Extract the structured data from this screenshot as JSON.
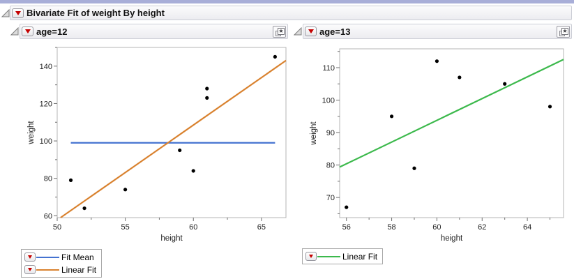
{
  "window": {
    "top_strip_color": "#a8aed8"
  },
  "icons": {
    "star": "★",
    "red_triangle": "red-triangle-menu",
    "disclosure": "open-disclosure-triangle",
    "bookmark": "layered-star-bookmark"
  },
  "outline": {
    "title": "Bivariate Fit of weight By height"
  },
  "panels": [
    {
      "title": "age=12",
      "legend": [
        {
          "label": "Fit Mean",
          "color": "#4472d0"
        },
        {
          "label": "Linear Fit",
          "color": "#d9822f"
        }
      ]
    },
    {
      "title": "age=13",
      "legend": [
        {
          "label": "Linear Fit",
          "color": "#3cb94c"
        }
      ]
    }
  ],
  "chart_data": [
    {
      "type": "scatter",
      "title": "age=12",
      "xlabel": "height",
      "ylabel": "weight",
      "xlim": [
        50,
        66.8
      ],
      "ylim": [
        59,
        150
      ],
      "x_ticks": [
        50,
        55,
        60,
        65
      ],
      "x_minor_ticks": [
        52.5,
        57.5,
        62.5
      ],
      "y_ticks": [
        60,
        80,
        100,
        120,
        140
      ],
      "y_minor_ticks": [
        70,
        90,
        110,
        130,
        150
      ],
      "grid": false,
      "point_color": "#000000",
      "points": [
        [
          51,
          79
        ],
        [
          52,
          64
        ],
        [
          55,
          74
        ],
        [
          59,
          95
        ],
        [
          60,
          84
        ],
        [
          61,
          123
        ],
        [
          61,
          128
        ],
        [
          66,
          145
        ]
      ],
      "series": [
        {
          "name": "Fit Mean",
          "kind": "hline",
          "y": 99,
          "x_range": [
            51,
            66
          ],
          "color": "#4472d0"
        },
        {
          "name": "Linear Fit",
          "kind": "linear",
          "slope": 5.0753,
          "intercept": -196.03,
          "color": "#d9822f"
        }
      ]
    },
    {
      "type": "scatter",
      "title": "age=13",
      "xlabel": "height",
      "ylabel": "weight",
      "xlim": [
        55.7,
        65.6
      ],
      "ylim": [
        63.8,
        115.8
      ],
      "x_ticks": [
        56,
        58,
        60,
        62,
        64
      ],
      "x_minor_ticks": [
        57,
        59,
        61,
        63,
        65
      ],
      "y_ticks": [
        70,
        80,
        90,
        100,
        110
      ],
      "y_minor_ticks": [
        65,
        75,
        85,
        95,
        105,
        115
      ],
      "grid": false,
      "point_color": "#000000",
      "points": [
        [
          56,
          67
        ],
        [
          58,
          95
        ],
        [
          59,
          79
        ],
        [
          60,
          112
        ],
        [
          61,
          107
        ],
        [
          63,
          105
        ],
        [
          65,
          98
        ]
      ],
      "series": [
        {
          "name": "Linear Fit",
          "kind": "linear",
          "slope": 3.3477,
          "intercept": -107.09,
          "color": "#3cb94c"
        }
      ]
    }
  ]
}
